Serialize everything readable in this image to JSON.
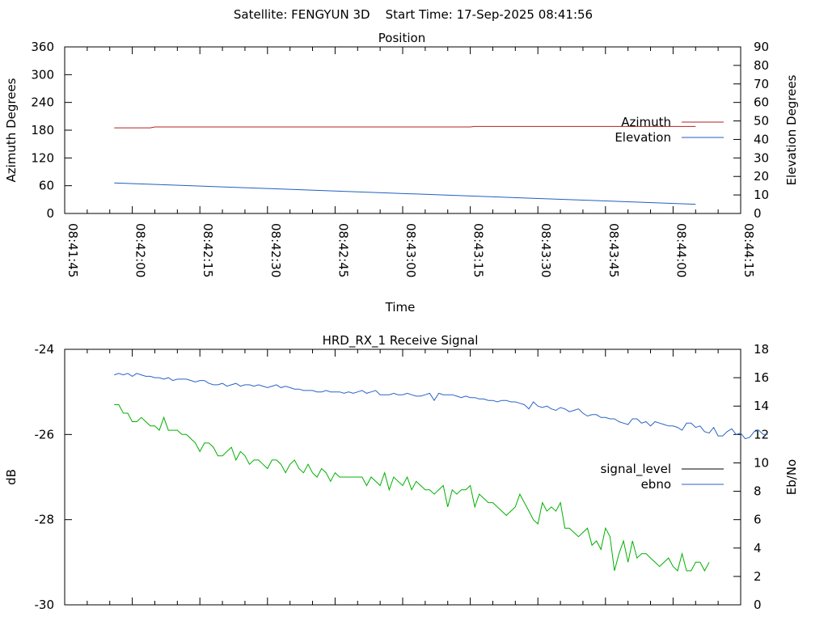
{
  "header": {
    "text": "Satellite: FENGYUN 3D    Start Time: 17-Sep-2025 08:41:56"
  },
  "colors": {
    "azimuth": "#b22222",
    "elevation": "#1f5fbf",
    "signal_level": "#00b000",
    "ebno": "#2a63c7",
    "legend_signal_sample": "#000000"
  },
  "chart_data": [
    {
      "type": "line",
      "title": "Position",
      "xlabel": "Time",
      "ylabel_left": "Azimuth Degrees",
      "ylabel_right": "Elevation Degrees",
      "x_ticks": [
        "08:41:45",
        "08:42:00",
        "08:42:15",
        "08:42:30",
        "08:42:45",
        "08:43:00",
        "08:43:15",
        "08:43:30",
        "08:43:45",
        "08:44:00",
        "08:44:15"
      ],
      "x_range_seconds": [
        "08:41:45",
        "08:44:15"
      ],
      "ylim_left": [
        0,
        360
      ],
      "yticks_left": [
        "0",
        "60",
        "120",
        "180",
        "240",
        "300",
        "360"
      ],
      "ylim_right": [
        0,
        90
      ],
      "yticks_right": [
        "0",
        "10",
        "20",
        "30",
        "40",
        "50",
        "60",
        "70",
        "80",
        "90"
      ],
      "legend_position": "right",
      "series": [
        {
          "name": "Azimuth",
          "axis": "left",
          "color": "#b22222",
          "x": [
            "08:41:56",
            "08:42:04",
            "08:42:05",
            "08:43:15",
            "08:43:16",
            "08:44:05"
          ],
          "y": [
            185,
            185,
            187,
            187,
            188,
            188
          ]
        },
        {
          "name": "Elevation",
          "axis": "right",
          "color": "#1f5fbf",
          "x": [
            "08:41:56",
            "08:44:05"
          ],
          "y": [
            16.5,
            5
          ]
        }
      ]
    },
    {
      "type": "line",
      "title": "HRD_RX_1 Receive Signal",
      "xlabel": "",
      "ylabel_left": "dB",
      "ylabel_right": "Eb/No",
      "x_range_seconds": [
        "08:41:45",
        "08:44:15"
      ],
      "ylim_left": [
        -30,
        -24
      ],
      "yticks_left": [
        "-30",
        "-28",
        "-26",
        "-24"
      ],
      "ylim_right": [
        0,
        18
      ],
      "yticks_right": [
        "0",
        "2",
        "4",
        "6",
        "8",
        "10",
        "12",
        "14",
        "16",
        "18"
      ],
      "legend_position": "right",
      "series": [
        {
          "name": "signal_level",
          "axis": "left",
          "color": "#00b000",
          "start": "08:41:56",
          "step_seconds": 1,
          "y": [
            -25.3,
            -25.3,
            -25.5,
            -25.5,
            -25.7,
            -25.7,
            -25.6,
            -25.7,
            -25.8,
            -25.8,
            -25.9,
            -25.6,
            -25.9,
            -25.9,
            -25.9,
            -26.0,
            -26.0,
            -26.1,
            -26.2,
            -26.4,
            -26.2,
            -26.2,
            -26.3,
            -26.5,
            -26.5,
            -26.4,
            -26.3,
            -26.6,
            -26.4,
            -26.5,
            -26.7,
            -26.6,
            -26.6,
            -26.7,
            -26.8,
            -26.6,
            -26.6,
            -26.7,
            -26.9,
            -26.7,
            -26.6,
            -26.8,
            -26.9,
            -26.7,
            -26.9,
            -27.0,
            -26.8,
            -26.9,
            -27.1,
            -26.9,
            -27.0,
            -27.0,
            -27.0,
            -27.0,
            -27.0,
            -27.0,
            -27.2,
            -27.0,
            -27.1,
            -27.2,
            -26.9,
            -27.3,
            -27.0,
            -27.1,
            -27.2,
            -27.0,
            -27.3,
            -27.1,
            -27.2,
            -27.3,
            -27.3,
            -27.4,
            -27.3,
            -27.2,
            -27.7,
            -27.3,
            -27.4,
            -27.3,
            -27.3,
            -27.2,
            -27.7,
            -27.4,
            -27.5,
            -27.6,
            -27.6,
            -27.7,
            -27.8,
            -27.9,
            -27.8,
            -27.7,
            -27.4,
            -27.6,
            -27.8,
            -28.0,
            -28.1,
            -27.6,
            -27.8,
            -27.7,
            -27.8,
            -27.6,
            -28.2,
            -28.2,
            -28.3,
            -28.4,
            -28.3,
            -28.2,
            -28.6,
            -28.5,
            -28.7,
            -28.2,
            -28.4,
            -29.2,
            -28.8,
            -28.5,
            -29.0,
            -28.5,
            -28.9,
            -28.8,
            -28.8,
            -28.9,
            -29.0,
            -29.1,
            -29.0,
            -28.9,
            -29.1,
            -29.2,
            -28.8,
            -29.2,
            -29.2,
            -29.0,
            -29.0,
            -29.2,
            -29.0
          ]
        },
        {
          "name": "ebno",
          "axis": "right",
          "color": "#2a63c7",
          "start": "08:41:56",
          "step_seconds": 1,
          "y": [
            16.2,
            16.3,
            16.2,
            16.3,
            16.1,
            16.3,
            16.2,
            16.1,
            16.1,
            16.0,
            16.0,
            15.9,
            16.0,
            15.8,
            15.9,
            15.9,
            15.9,
            15.8,
            15.7,
            15.8,
            15.8,
            15.6,
            15.5,
            15.5,
            15.6,
            15.4,
            15.5,
            15.6,
            15.4,
            15.5,
            15.5,
            15.4,
            15.5,
            15.4,
            15.3,
            15.4,
            15.5,
            15.3,
            15.4,
            15.3,
            15.2,
            15.2,
            15.1,
            15.1,
            15.1,
            15.0,
            15.0,
            15.1,
            15.0,
            15.0,
            15.0,
            14.9,
            15.0,
            14.9,
            15.0,
            15.1,
            14.9,
            15.0,
            15.1,
            14.8,
            14.8,
            14.8,
            14.9,
            14.8,
            14.8,
            14.9,
            14.8,
            14.7,
            14.7,
            14.8,
            14.9,
            14.4,
            14.9,
            14.8,
            14.8,
            14.8,
            14.7,
            14.6,
            14.7,
            14.6,
            14.6,
            14.5,
            14.5,
            14.4,
            14.4,
            14.3,
            14.4,
            14.4,
            14.3,
            14.3,
            14.2,
            14.1,
            13.8,
            14.3,
            14.0,
            13.9,
            14.0,
            13.8,
            13.7,
            13.9,
            13.8,
            13.6,
            13.7,
            13.8,
            13.5,
            13.3,
            13.4,
            13.4,
            13.2,
            13.2,
            13.1,
            13.1,
            12.9,
            12.8,
            12.7,
            13.1,
            13.1,
            12.8,
            12.9,
            12.6,
            12.9,
            12.8,
            12.7,
            12.6,
            12.6,
            12.5,
            12.3,
            12.8,
            12.8,
            12.5,
            12.6,
            12.2,
            12.1,
            12.5,
            11.9,
            11.9,
            12.2,
            12.4,
            12.0,
            12.1,
            11.7,
            11.8,
            12.2,
            12.3,
            12.0,
            12.0
          ]
        }
      ]
    }
  ]
}
